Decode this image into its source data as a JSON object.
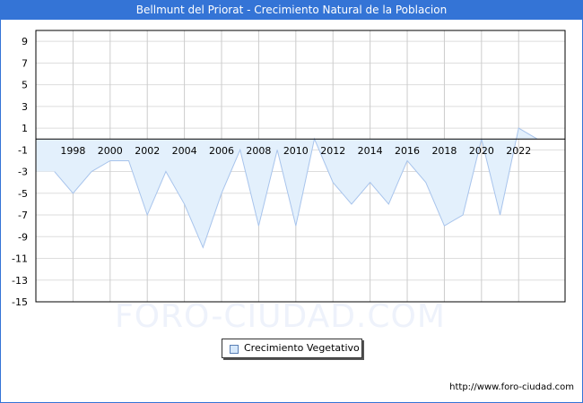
{
  "title": "Bellmunt del Priorat - Crecimiento Natural de la Poblacion",
  "watermark": "FORO-CIUDAD.COM",
  "url": "http://www.foro-ciudad.com",
  "legend": {
    "label": "Crecimiento Vegetativo",
    "color": "#d6e8fb",
    "border": "#5a7fb5"
  },
  "colors": {
    "header": "#3474d6",
    "fill": "#e3f0fc",
    "line": "#a8c4ec",
    "grid": "#cccccc"
  },
  "chart_data": {
    "type": "area",
    "title": "Bellmunt del Priorat - Crecimiento Natural de la Poblacion",
    "xlabel": "",
    "ylabel": "",
    "x": [
      1996,
      1997,
      1998,
      1999,
      2000,
      2001,
      2002,
      2003,
      2004,
      2005,
      2006,
      2007,
      2008,
      2009,
      2010,
      2011,
      2012,
      2013,
      2014,
      2015,
      2016,
      2017,
      2018,
      2019,
      2020,
      2021,
      2022,
      2023
    ],
    "series": [
      {
        "name": "Crecimiento Vegetativo",
        "values": [
          -3,
          -3,
          -5,
          -3,
          -2,
          -2,
          -7,
          -3,
          -6,
          -10,
          -5,
          -1,
          -8,
          -1,
          -8,
          0,
          -4,
          -6,
          -4,
          -6,
          -2,
          -4,
          -8,
          -7,
          0,
          -7,
          1,
          0
        ]
      }
    ],
    "x_tick_labels": [
      "1998",
      "2000",
      "2002",
      "2004",
      "2006",
      "2008",
      "2010",
      "2012",
      "2014",
      "2016",
      "2018",
      "2020",
      "2022"
    ],
    "y_tick_labels": [
      "9",
      "7",
      "5",
      "3",
      "1",
      "-1",
      "-3",
      "-5",
      "-7",
      "-9",
      "-11",
      "-13",
      "-15"
    ],
    "ylim": [
      -15,
      10
    ],
    "xlim": [
      1996,
      2024.5
    ],
    "grid": true,
    "legend_position": "bottom"
  }
}
